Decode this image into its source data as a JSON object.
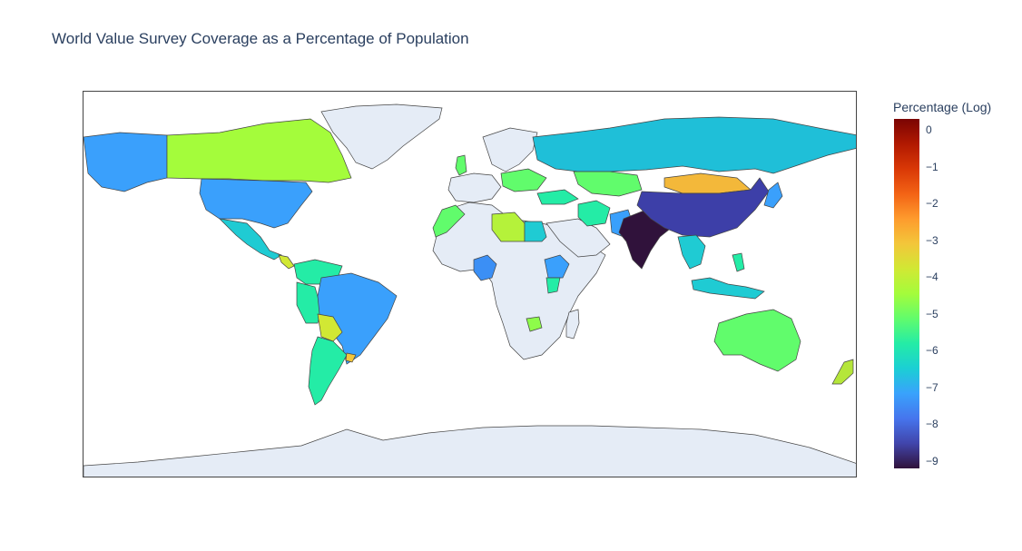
{
  "title": "World Value Survey Coverage as a Percentage of Population",
  "colorbar": {
    "title": "Percentage (Log)",
    "ticks": [
      "0",
      "−1",
      "−2",
      "−3",
      "−4",
      "−5",
      "−6",
      "−7",
      "−8",
      "−9"
    ],
    "tick_values": [
      0,
      -1,
      -2,
      -3,
      -4,
      -5,
      -6,
      -7,
      -8,
      -9
    ],
    "range": [
      -9.2,
      0.3
    ],
    "colorscale": [
      "#30123b",
      "#4145ab",
      "#4675ed",
      "#39a2fc",
      "#1bcfd4",
      "#24eca6",
      "#61fc6c",
      "#a4fc3b",
      "#d1e834",
      "#f3c63a",
      "#fe9b2d",
      "#f36315",
      "#d93806",
      "#b11901",
      "#7a0403"
    ],
    "land_no_data_color": "#e5ecf6"
  },
  "chart_data": {
    "type": "choropleth",
    "title": "World Value Survey Coverage as a Percentage of Population",
    "colorbar_title": "Percentage (Log)",
    "values_approx": [
      {
        "region": "India",
        "value": -9.0
      },
      {
        "region": "China",
        "value": -8.6
      },
      {
        "region": "Nigeria",
        "value": -7.5
      },
      {
        "region": "Pakistan",
        "value": -7.3
      },
      {
        "region": "Bangladesh",
        "value": -7.5
      },
      {
        "region": "United States",
        "value": -7.1
      },
      {
        "region": "Brazil",
        "value": -7.1
      },
      {
        "region": "Indonesia",
        "value": -6.6
      },
      {
        "region": "Russia",
        "value": -6.3
      },
      {
        "region": "Mexico",
        "value": -6.4
      },
      {
        "region": "Japan",
        "value": -6.6
      },
      {
        "region": "Ethiopia",
        "value": -6.9
      },
      {
        "region": "Egypt",
        "value": -6.8
      },
      {
        "region": "Iran",
        "value": -6.2
      },
      {
        "region": "Turkey",
        "value": -6.0
      },
      {
        "region": "Argentina",
        "value": -6.0
      },
      {
        "region": "Kazakhstan",
        "value": -5.6
      },
      {
        "region": "Mongolia",
        "value": -3.2
      },
      {
        "region": "Canada",
        "value": -4.4
      },
      {
        "region": "Australia",
        "value": -5.0
      },
      {
        "region": "Libya",
        "value": -4.1
      },
      {
        "region": "Bolivia",
        "value": -3.9
      },
      {
        "region": "Uruguay",
        "value": -3.6
      },
      {
        "region": "New Zealand",
        "value": -4.0
      },
      {
        "region": "Zimbabwe",
        "value": -5.1
      },
      {
        "region": "Peru",
        "value": -5.6
      },
      {
        "region": "Colombia",
        "value": -5.8
      },
      {
        "region": "Chile",
        "value": -5.7
      }
    ]
  }
}
